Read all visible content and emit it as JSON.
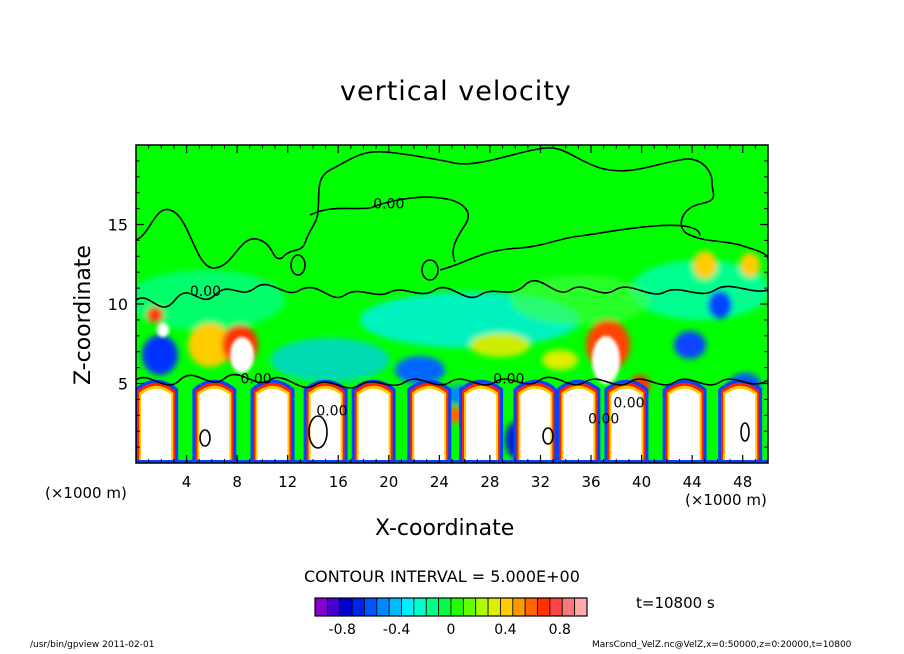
{
  "title": "vertical velocity",
  "axes": {
    "xlabel": "X-coordinate",
    "ylabel": "Z-coordinate",
    "x_unit_left": "(×1000 m)",
    "x_unit_right": "(×1000 m)"
  },
  "contour_interval_text": "CONTOUR INTERVAL = 5.000E+00",
  "time_text": "t=10800  s",
  "footer": {
    "left": "/usr/bin/gpview   2011-02-01",
    "right": "MarsCond_VelZ.nc@VelZ,x=0:50000,z=0:20000,t=10800"
  },
  "colors": {
    "background_field": "#00ff00",
    "updraft_core": "#ffffff",
    "contour_line": "#000000"
  },
  "chart_data": {
    "type": "heatmap",
    "title": "vertical velocity",
    "xlabel": "X-coordinate",
    "ylabel": "Z-coordinate",
    "xlim": [
      0,
      50
    ],
    "ylim": [
      0,
      20
    ],
    "x_ticks": [
      4,
      8,
      12,
      16,
      20,
      24,
      28,
      32,
      36,
      40,
      44,
      48
    ],
    "y_ticks": [
      5,
      10,
      15
    ],
    "contour_labels": [
      {
        "text": "0.00",
        "x": 20,
        "z": 16
      },
      {
        "text": "0.00",
        "x": 5.5,
        "z": 10.5
      },
      {
        "text": "0.00",
        "x": 9.5,
        "z": 5
      },
      {
        "text": "0.00",
        "x": 15.5,
        "z": 3
      },
      {
        "text": "0.00",
        "x": 29.5,
        "z": 5
      },
      {
        "text": "0.00",
        "x": 37,
        "z": 2.5
      },
      {
        "text": "0.00",
        "x": 39,
        "z": 3.5
      }
    ],
    "colorbar": {
      "tick_labels": [
        "-0.8",
        "-0.4",
        "0",
        "0.4",
        "0.8"
      ],
      "tick_values": [
        -0.8,
        -0.4,
        0,
        0.4,
        0.8
      ],
      "range": [
        -1.0,
        1.0
      ],
      "colors": [
        "#8800cc",
        "#4400cc",
        "#0000cc",
        "#0022ee",
        "#0055ff",
        "#0088ff",
        "#00bbff",
        "#00eeff",
        "#00ffcc",
        "#00ff88",
        "#00ff44",
        "#22ff00",
        "#66ff00",
        "#aaff00",
        "#ddee00",
        "#ffcc00",
        "#ff9900",
        "#ff6600",
        "#ff3300",
        "#ff4444",
        "#ff7777",
        "#ffaaaa"
      ]
    }
  }
}
